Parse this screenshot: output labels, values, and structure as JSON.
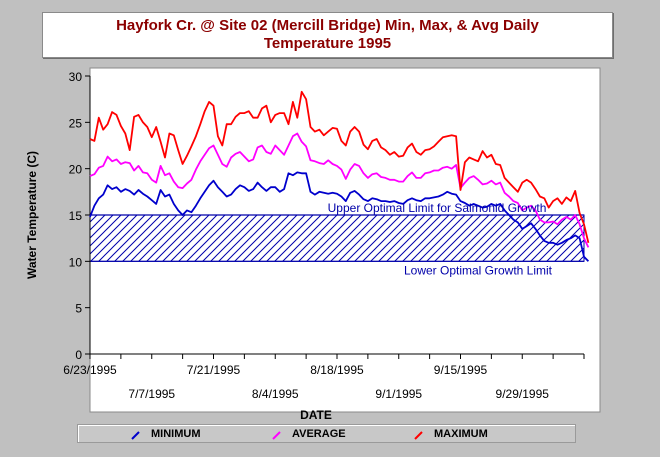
{
  "chart_data": {
    "type": "line",
    "title": "Hayfork Cr. @ Site 02 (Mercill Bridge) Min, Max, & Avg Daily",
    "subtitle": "Temperature 1995",
    "xlabel": "DATE",
    "ylabel": "Water Temperature (C)",
    "ylim": [
      0,
      30
    ],
    "yticks": [
      0,
      5,
      10,
      15,
      20,
      25,
      30
    ],
    "xlim": [
      "1995-06-23",
      "1995-10-13"
    ],
    "xticks_top": [
      "6/23/1995",
      "7/21/1995",
      "8/18/1995",
      "9/15/1995"
    ],
    "xticks_bottom": [
      "7/7/1995",
      "8/4/1995",
      "9/1/1995",
      "9/29/1995"
    ],
    "x_start_date": "1995-06-23",
    "annotations": [
      {
        "text": "Upper Optimal Limit for Salmonid Growth",
        "y": 15
      },
      {
        "text": "Lower Optimal Growth Limit",
        "y": 10
      }
    ],
    "optimal_band": [
      10,
      15
    ],
    "colors": {
      "minimum": "#0000cc",
      "average": "#ff00ff",
      "maximum": "#ff0000",
      "band": "#0000aa"
    },
    "series": [
      {
        "name": "MINIMUM",
        "values": [
          14.8,
          16.0,
          16.8,
          17.2,
          18.2,
          17.8,
          18.0,
          17.5,
          17.8,
          17.6,
          17.2,
          17.7,
          17.3,
          17.0,
          16.6,
          16.2,
          17.7,
          17.0,
          17.2,
          16.2,
          15.5,
          15.0,
          15.5,
          15.3,
          16.0,
          16.8,
          17.5,
          18.2,
          18.7,
          18.0,
          17.5,
          17.0,
          17.2,
          17.8,
          18.2,
          18.0,
          17.6,
          17.8,
          18.5,
          18.0,
          17.6,
          18.0,
          18.0,
          17.5,
          17.8,
          19.5,
          19.3,
          19.6,
          19.5,
          19.5,
          17.5,
          17.2,
          17.5,
          17.4,
          17.3,
          17.4,
          17.3,
          17.0,
          16.5,
          17.4,
          17.6,
          17.2,
          16.7,
          16.5,
          16.8,
          16.7,
          16.5,
          16.5,
          16.4,
          16.5,
          16.3,
          16.2,
          16.6,
          16.8,
          16.6,
          16.5,
          16.8,
          16.8,
          16.9,
          17.0,
          17.2,
          17.5,
          17.3,
          17.2,
          16.5,
          16.3,
          16.0,
          16.2,
          16.0,
          15.8,
          15.9,
          16.2,
          16.0,
          16.2,
          15.5,
          15.0,
          14.5,
          14.2,
          13.5,
          13.8,
          14.1,
          13.5,
          12.8,
          12.2,
          12.0,
          12.0,
          11.8,
          12.0,
          12.3,
          12.5,
          12.8,
          12.5,
          10.5,
          10.0
        ],
        "unit": "C"
      },
      {
        "name": "AVERAGE",
        "values": [
          19.2,
          19.4,
          20.1,
          20.3,
          21.3,
          20.8,
          21.0,
          20.5,
          20.7,
          20.6,
          19.8,
          20.3,
          19.6,
          19.5,
          18.8,
          18.5,
          20.3,
          19.3,
          19.5,
          18.6,
          18.0,
          17.9,
          18.4,
          18.8,
          19.9,
          20.8,
          21.5,
          22.2,
          22.5,
          21.5,
          20.5,
          20.2,
          21.2,
          21.6,
          21.8,
          21.3,
          20.8,
          21.0,
          22.3,
          22.5,
          21.8,
          21.6,
          22.5,
          22.0,
          21.5,
          22.5,
          23.5,
          23.8,
          22.9,
          22.4,
          20.9,
          20.8,
          20.6,
          20.5,
          20.9,
          20.5,
          20.3,
          19.9,
          18.9,
          19.9,
          20.5,
          20.3,
          19.5,
          19.0,
          19.4,
          19.5,
          19.1,
          19.0,
          18.8,
          18.8,
          18.6,
          18.6,
          19.2,
          19.6,
          19.0,
          19.0,
          19.5,
          19.6,
          19.8,
          19.8,
          20.1,
          20.2,
          20.0,
          20.4,
          17.9,
          18.5,
          19.0,
          19.2,
          18.8,
          18.3,
          18.4,
          18.7,
          18.3,
          18.5,
          17.4,
          17.0,
          16.5,
          16.3,
          15.5,
          15.8,
          16.0,
          15.5,
          14.5,
          14.2,
          14.2,
          14.3,
          14.0,
          14.5,
          14.8,
          14.5,
          15.0,
          14.0,
          12.5,
          11.5
        ],
        "unit": "C"
      },
      {
        "name": "MAXIMUM",
        "values": [
          23.2,
          23.0,
          25.5,
          24.2,
          24.8,
          26.1,
          25.8,
          24.6,
          23.8,
          22.0,
          25.6,
          25.8,
          25.0,
          24.5,
          23.4,
          24.5,
          22.9,
          21.2,
          23.8,
          23.6,
          22.0,
          20.5,
          21.4,
          22.4,
          23.5,
          24.8,
          26.2,
          27.2,
          26.8,
          23.5,
          22.5,
          24.8,
          24.8,
          25.6,
          26.0,
          26.0,
          26.2,
          25.5,
          25.5,
          26.5,
          26.8,
          25.0,
          25.8,
          26.0,
          26.0,
          24.8,
          27.2,
          25.5,
          28.3,
          27.5,
          24.5,
          24.0,
          24.2,
          23.6,
          24.0,
          24.4,
          24.3,
          23.0,
          22.5,
          24.0,
          24.5,
          24.0,
          22.6,
          22.1,
          23.0,
          23.2,
          22.3,
          22.0,
          21.5,
          21.8,
          21.3,
          21.4,
          22.3,
          22.7,
          21.8,
          21.5,
          22.0,
          22.1,
          22.4,
          22.9,
          23.4,
          23.5,
          23.6,
          23.5,
          17.7,
          20.7,
          21.2,
          21.0,
          20.8,
          21.9,
          21.2,
          21.5,
          20.5,
          20.4,
          19.0,
          18.5,
          18.0,
          17.5,
          18.5,
          18.8,
          18.5,
          17.8,
          17.0,
          16.8,
          15.8,
          16.5,
          16.8,
          16.2,
          16.9,
          16.5,
          17.6,
          15.2,
          14.0,
          12.0
        ],
        "unit": "C"
      }
    ]
  },
  "legend": {
    "minimum_label": "MINIMUM",
    "average_label": "AVERAGE",
    "maximum_label": "MAXIMUM"
  }
}
